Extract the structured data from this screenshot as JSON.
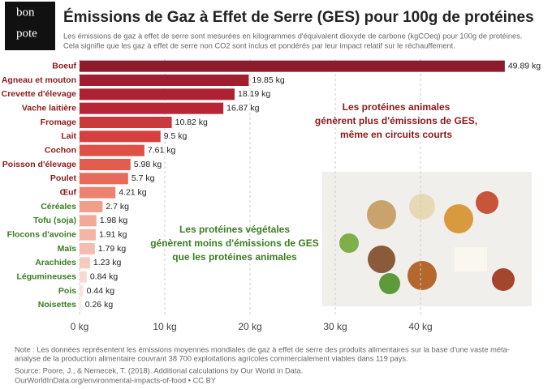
{
  "logo": [
    "bon",
    "pote"
  ],
  "chart_data": {
    "type": "bar",
    "orientation": "horizontal",
    "title": "Émissions de Gaz à Effet de Serre (GES) pour 100g de protéines",
    "subtitle": [
      "Les émissions de gaz à effet de serre sont mesurées en kilogrammes d'équivalent dioxyde de carbone (kgCOeq) pour 100g de protéines.",
      "Cela signifie que les gaz à effet de serre non CO2 sont inclus et pondérés par leur impact relatif sur le réchauffement."
    ],
    "categories": [
      "Boeuf",
      "Agneau et mouton",
      "Crevette d'élevage",
      "Vache laitière",
      "Fromage",
      "Lait",
      "Cochon",
      "Poisson d'élevage",
      "Poulet",
      "Œuf",
      "Céréales",
      "Tofu (soja)",
      "Flocons d'avoine",
      "Maïs",
      "Arachides",
      "Légumineuses",
      "Pois",
      "Noisettes"
    ],
    "values": [
      49.89,
      19.85,
      18.19,
      16.87,
      10.82,
      9.5,
      7.61,
      5.98,
      5.7,
      4.21,
      2.7,
      1.98,
      1.91,
      1.79,
      1.23,
      0.84,
      0.44,
      0.26
    ],
    "value_labels": [
      "49.89 kg",
      "19.85 kg",
      "18.19 kg",
      "16.87 kg",
      "10.82 kg",
      "9.5 kg",
      "7.61 kg",
      "5.98 kg",
      "5.7 kg",
      "4.21 kg",
      "2.7 kg",
      "1.98 kg",
      "1.91 kg",
      "1.79 kg",
      "1.23 kg",
      "0.84 kg",
      "0.44 kg",
      "0.26 kg"
    ],
    "colors": [
      "#8c1c2c",
      "#a01e30",
      "#ad2232",
      "#b72536",
      "#c83a3c",
      "#d6403f",
      "#df5046",
      "#e35d4f",
      "#e76a5a",
      "#ec8270",
      "#f19e8a",
      "#f3a998",
      "#f5b5a6",
      "#f6bdaf",
      "#f8c9be",
      "#fad8d0",
      "#fbe2dc",
      "#fdebe6"
    ],
    "label_colors": [
      "#8b1a1a",
      "#8b1a1a",
      "#8b1a1a",
      "#8b1a1a",
      "#8b1a1a",
      "#8b1a1a",
      "#8b1a1a",
      "#8b1a1a",
      "#8b1a1a",
      "#8b1a1a",
      "#3a7d22",
      "#3a7d22",
      "#3a7d22",
      "#3a7d22",
      "#3a7d22",
      "#3a7d22",
      "#3a7d22",
      "#3a7d22"
    ],
    "xlim": [
      0,
      50
    ],
    "xticks": [
      {
        "value": 0,
        "label": "0 kg"
      },
      {
        "value": 10,
        "label": "10 kg"
      },
      {
        "value": 20,
        "label": "20 kg"
      },
      {
        "value": 30,
        "label": "30 kg"
      },
      {
        "value": 40,
        "label": "40 kg"
      }
    ],
    "grid": true,
    "annotations": [
      {
        "lines": [
          "Les protéines animales",
          "génèrent plus d'émissions de GES,",
          "même en circuits courts"
        ],
        "color": "#8b1a1a"
      },
      {
        "lines": [
          "Les protéines végétales",
          "génèrent moins d'émissions de GES",
          "que les protéines animales"
        ],
        "color": "#3a7d22"
      }
    ]
  },
  "note": [
    "Note : Les données représentent les émissions moyennes mondiales de gaz à effet de serre des produits alimentaires sur la base d'une vaste méta-",
    "analyse de la production alimentaire couvrant 38 700 exploitations agricoles commercialement viables dans 119 pays."
  ],
  "source": [
    "Source: Poore, J., & Nemecek, T. (2018). Additional calculations by Our World in Data.",
    "OurWorldInData.org/environmental-impacts-of-food • CC BY"
  ]
}
